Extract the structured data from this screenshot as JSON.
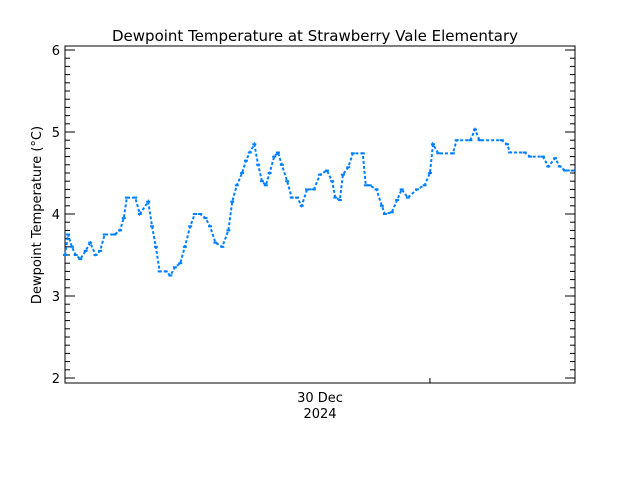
{
  "chart_data": {
    "type": "line",
    "title": "Dewpoint Temperature at Strawberry Vale Elementary",
    "ylabel": "Dewpoint Temperature (°C)",
    "xlabel": "",
    "xlim": [
      "2024-12-29T08:10",
      "2024-12-31T15:50"
    ],
    "ylim": [
      2,
      6
    ],
    "yticks": [
      "2",
      "3",
      "4",
      "5",
      "6"
    ],
    "xtick_label": {
      "line1": "30 Dec",
      "line2": "2024"
    },
    "grid": false,
    "color": "#0080ff",
    "series": [
      {
        "x": [
          "2024-12-29T08:10",
          "2024-12-29T08:30",
          "2024-12-29T08:55",
          "2024-12-29T09:20",
          "2024-12-29T09:50",
          "2024-12-29T10:25",
          "2024-12-29T10:55",
          "2024-12-29T11:30",
          "2024-12-29T12:00",
          "2024-12-29T12:30",
          "2024-12-29T13:35",
          "2024-12-29T14:10",
          "2024-12-29T14:35",
          "2024-12-29T14:55",
          "2024-12-29T15:50",
          "2024-12-29T16:20",
          "2024-12-29T17:15",
          "2024-12-29T17:40",
          "2024-12-29T18:05",
          "2024-12-29T18:30",
          "2024-12-29T19:10",
          "2024-12-29T19:40",
          "2024-12-29T20:10",
          "2024-12-29T20:45",
          "2024-12-29T21:15",
          "2024-12-29T21:50",
          "2024-12-29T22:20",
          "2024-12-29T22:55",
          "2024-12-29T23:30",
          "2024-12-30T00:00",
          "2024-12-30T00:35",
          "2024-12-30T01:20",
          "2024-12-30T02:00",
          "2024-12-30T02:25",
          "2024-12-30T02:55",
          "2024-12-30T03:30",
          "2024-12-30T03:55",
          "2024-12-30T04:20",
          "2024-12-30T04:50",
          "2024-12-30T05:15",
          "2024-12-30T05:40",
          "2024-12-30T06:05",
          "2024-12-30T06:30",
          "2024-12-30T07:00",
          "2024-12-30T07:25",
          "2024-12-30T07:50",
          "2024-12-30T08:25",
          "2024-12-30T08:55",
          "2024-12-30T09:30",
          "2024-12-30T10:00",
          "2024-12-30T10:35",
          "2024-12-30T11:20",
          "2024-12-30T12:00",
          "2024-12-30T12:45",
          "2024-12-30T13:20",
          "2024-12-30T13:40",
          "2024-12-30T14:10",
          "2024-12-30T14:30",
          "2024-12-30T15:05",
          "2024-12-30T15:35",
          "2024-12-30T16:40",
          "2024-12-30T17:00",
          "2024-12-30T17:25",
          "2024-12-30T18:10",
          "2024-12-30T18:45",
          "2024-12-30T19:05",
          "2024-12-30T19:50",
          "2024-12-30T20:25",
          "2024-12-30T20:55",
          "2024-12-30T21:35",
          "2024-12-30T22:35",
          "2024-12-30T23:25",
          "2024-12-31T00:00",
          "2024-12-31T00:20",
          "2024-12-31T00:55",
          "2024-12-31T02:30",
          "2024-12-31T02:55",
          "2024-12-31T04:25",
          "2024-12-31T04:55",
          "2024-12-31T05:25",
          "2024-12-31T07:50",
          "2024-12-31T08:25",
          "2024-12-31T08:45",
          "2024-12-31T10:20",
          "2024-12-31T10:55",
          "2024-12-31T12:20",
          "2024-12-31T12:55",
          "2024-12-31T13:40",
          "2024-12-31T14:10",
          "2024-12-31T14:45",
          "2024-12-31T15:35"
        ],
        "y": [
          3.5,
          3.75,
          3.6,
          3.5,
          3.45,
          3.55,
          3.65,
          3.5,
          3.55,
          3.75,
          3.75,
          3.8,
          3.95,
          4.2,
          4.2,
          4.0,
          4.15,
          3.85,
          3.6,
          3.3,
          3.3,
          3.25,
          3.35,
          3.4,
          3.6,
          3.85,
          4.0,
          4.0,
          3.95,
          3.85,
          3.65,
          3.6,
          3.8,
          4.15,
          4.35,
          4.5,
          4.65,
          4.75,
          4.85,
          4.6,
          4.4,
          4.35,
          4.5,
          4.7,
          4.75,
          4.6,
          4.4,
          4.2,
          4.2,
          4.1,
          4.3,
          4.3,
          4.48,
          4.53,
          4.4,
          4.2,
          4.17,
          4.48,
          4.57,
          4.74,
          4.74,
          4.35,
          4.35,
          4.3,
          4.1,
          4.0,
          4.02,
          4.17,
          4.3,
          4.2,
          4.3,
          4.35,
          4.5,
          4.85,
          4.74,
          4.74,
          4.9,
          4.9,
          5.03,
          4.9,
          4.9,
          4.85,
          4.75,
          4.75,
          4.7,
          4.7,
          4.58,
          4.68,
          4.58,
          4.53,
          4.53
        ]
      }
    ]
  }
}
